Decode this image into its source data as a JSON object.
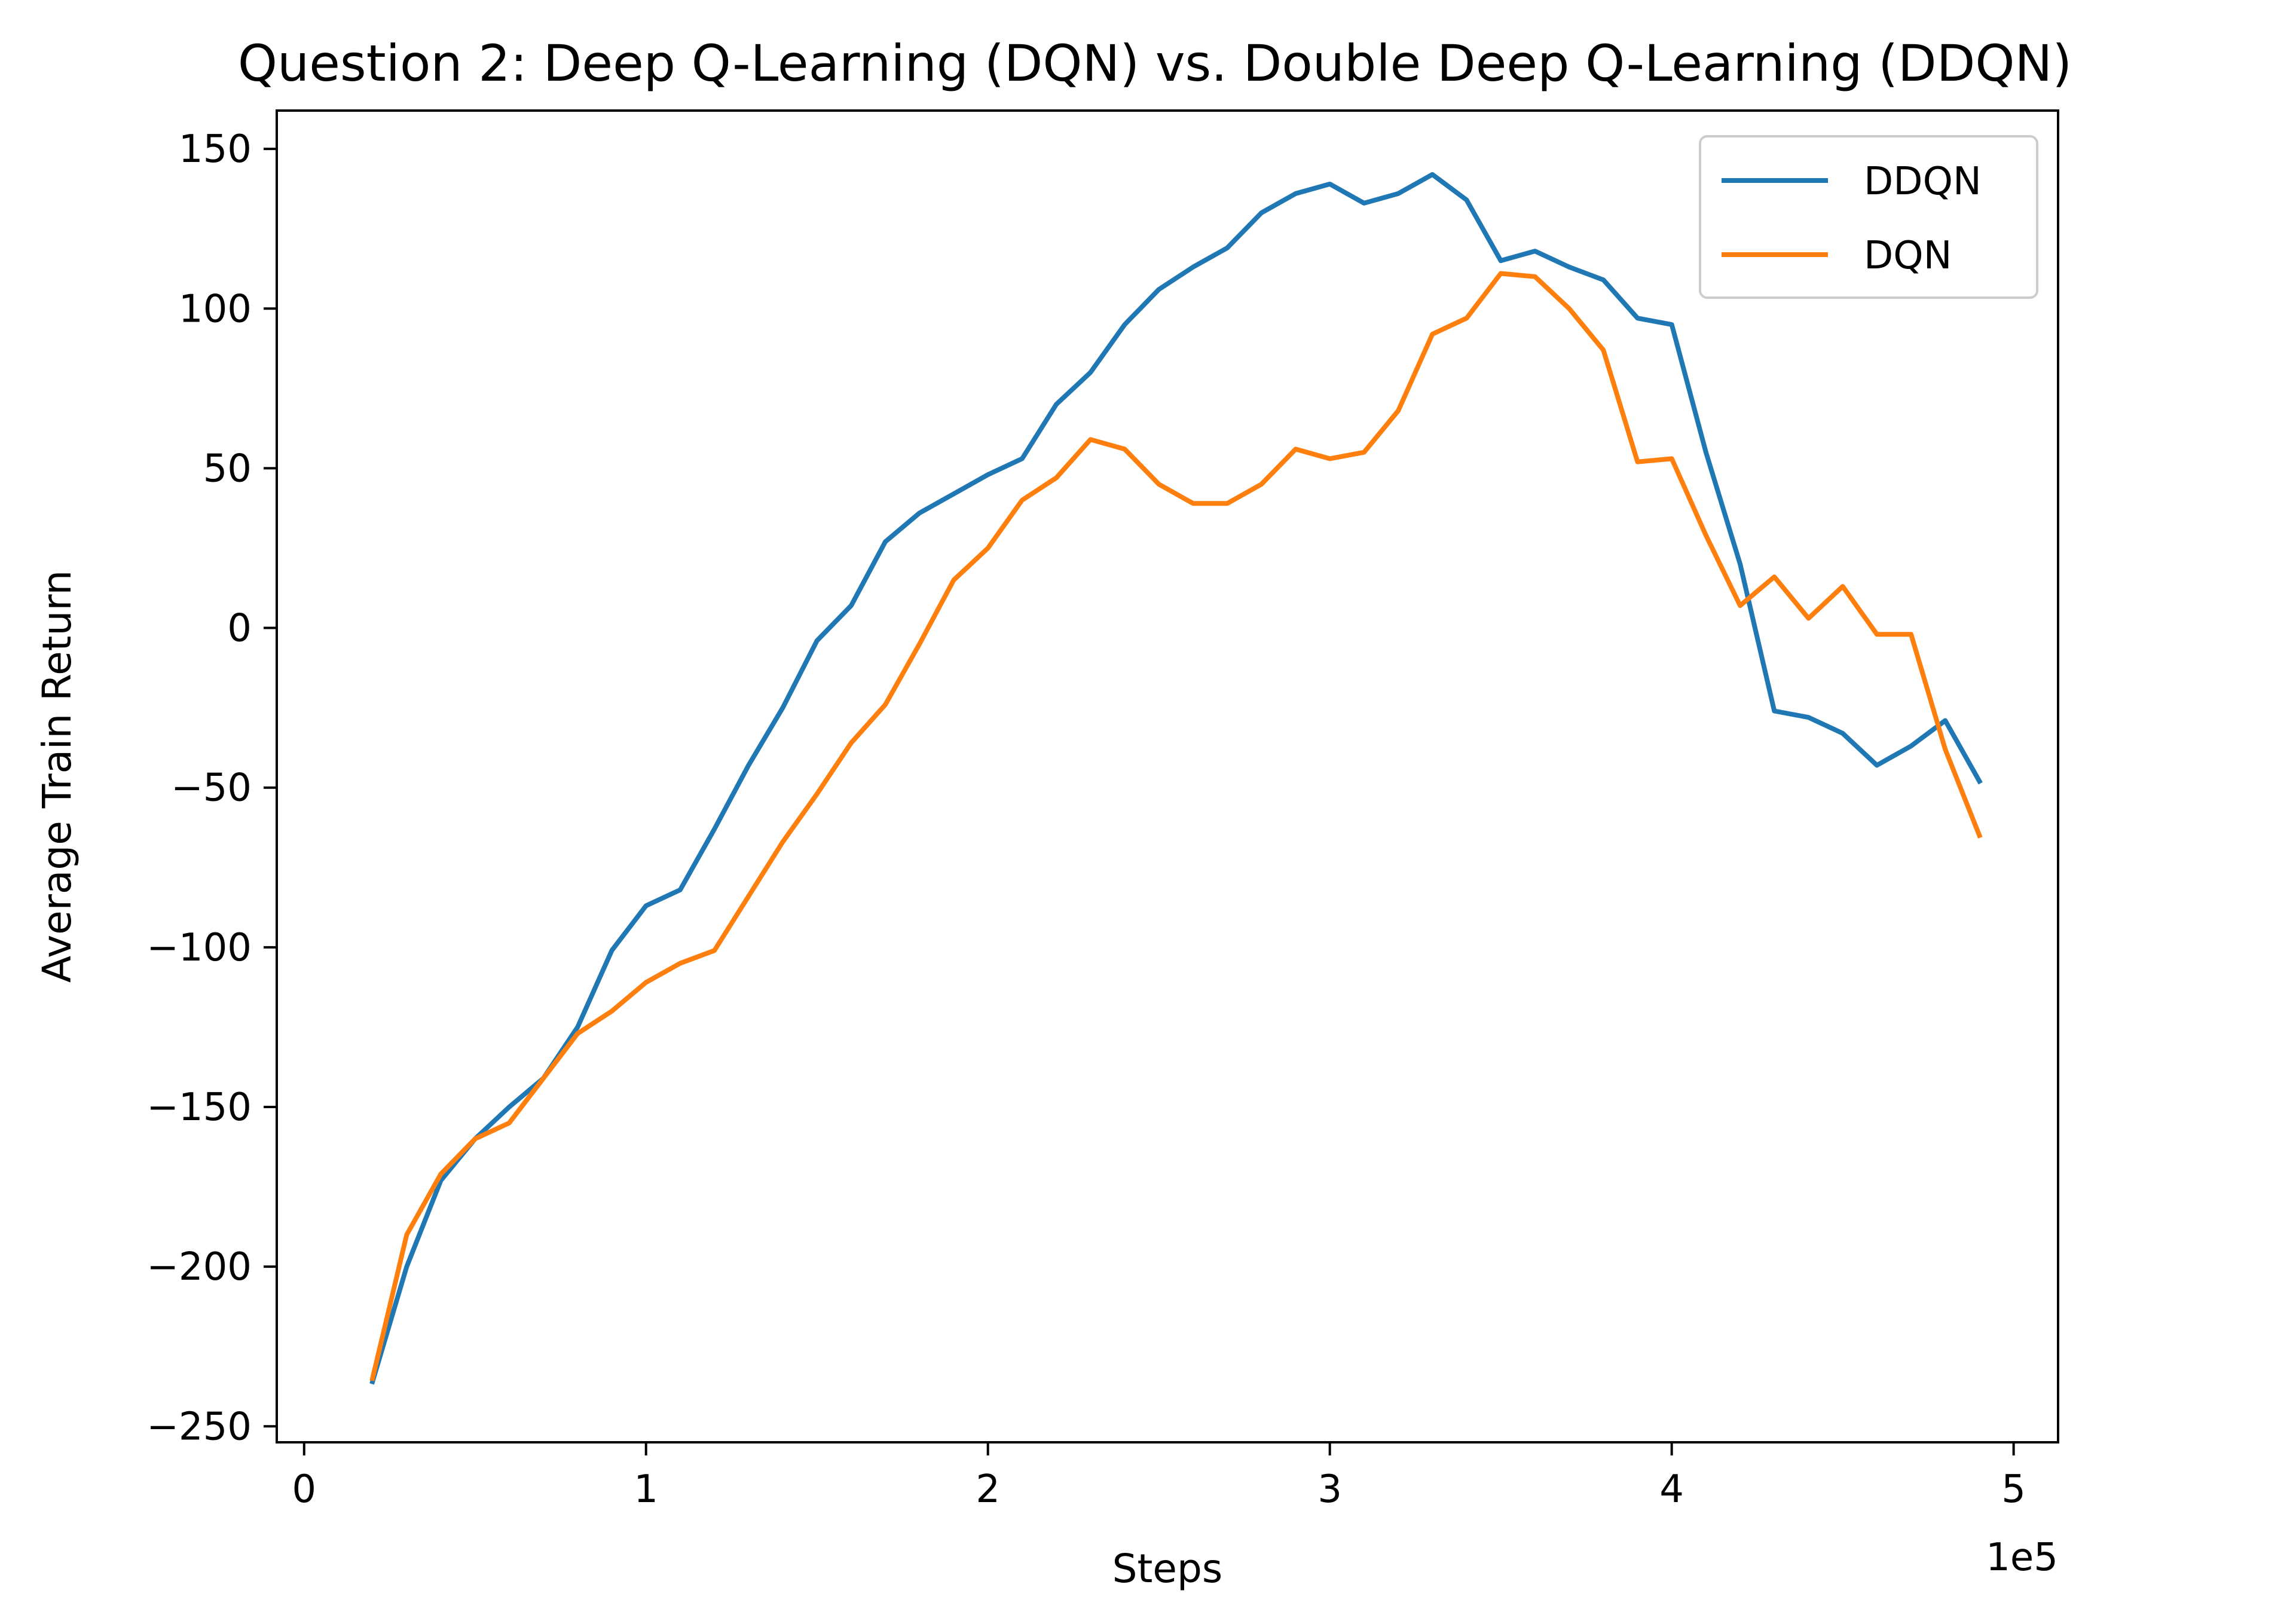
{
  "chart_data": {
    "type": "line",
    "title": "Question 2: Deep Q-Learning (DQN) vs. Double Deep Q-Learning (DDQN)",
    "xlabel": "Steps",
    "ylabel": "Average Train Return",
    "x_scale_label": "1e5",
    "xlim": [
      -0.08,
      5.13
    ],
    "ylim": [
      -255,
      162
    ],
    "xticks": [
      0,
      1,
      2,
      3,
      4,
      5
    ],
    "xtick_labels": [
      "0",
      "1",
      "2",
      "3",
      "4",
      "5"
    ],
    "yticks": [
      -250,
      -200,
      -150,
      -100,
      -50,
      0,
      50,
      100,
      150
    ],
    "ytick_labels": [
      "−250",
      "−200",
      "−150",
      "−100",
      "−50",
      "0",
      "50",
      "100",
      "150"
    ],
    "grid": false,
    "legend_position": "upper right",
    "x": [
      0.2,
      0.3,
      0.4,
      0.5,
      0.6,
      0.7,
      0.8,
      0.9,
      1.0,
      1.1,
      1.2,
      1.3,
      1.4,
      1.5,
      1.6,
      1.7,
      1.8,
      1.9,
      2.0,
      2.1,
      2.2,
      2.3,
      2.4,
      2.5,
      2.6,
      2.7,
      2.8,
      2.9,
      3.0,
      3.1,
      3.2,
      3.3,
      3.4,
      3.5,
      3.6,
      3.7,
      3.8,
      3.9,
      4.0,
      4.1,
      4.2,
      4.3,
      4.4,
      4.5,
      4.6,
      4.7,
      4.8,
      4.9
    ],
    "series": [
      {
        "name": "DDQN",
        "color": "#1f77b4",
        "values": [
          -236,
          -200,
          -173,
          -160,
          -150,
          -141,
          -125,
          -101,
          -87,
          -82,
          -63,
          -43,
          -25,
          -4,
          7,
          27,
          36,
          42,
          48,
          53,
          70,
          80,
          95,
          106,
          113,
          119,
          130,
          136,
          139,
          133,
          136,
          142,
          134,
          115,
          118,
          113,
          109,
          97,
          95,
          55,
          20,
          -26,
          -28,
          -33,
          -43,
          -37,
          -29,
          -48
        ]
      },
      {
        "name": "DQN",
        "color": "#ff7f0e",
        "values": [
          -235,
          -190,
          -171,
          -160,
          -155,
          -141,
          -127,
          -120,
          -111,
          -105,
          -101,
          -84,
          -67,
          -52,
          -36,
          -24,
          -5,
          15,
          25,
          40,
          47,
          59,
          56,
          45,
          39,
          39,
          45,
          56,
          53,
          55,
          68,
          92,
          97,
          111,
          110,
          100,
          87,
          52,
          53,
          29,
          7,
          16,
          3,
          13,
          -2,
          -2,
          -38,
          -65
        ]
      }
    ]
  }
}
